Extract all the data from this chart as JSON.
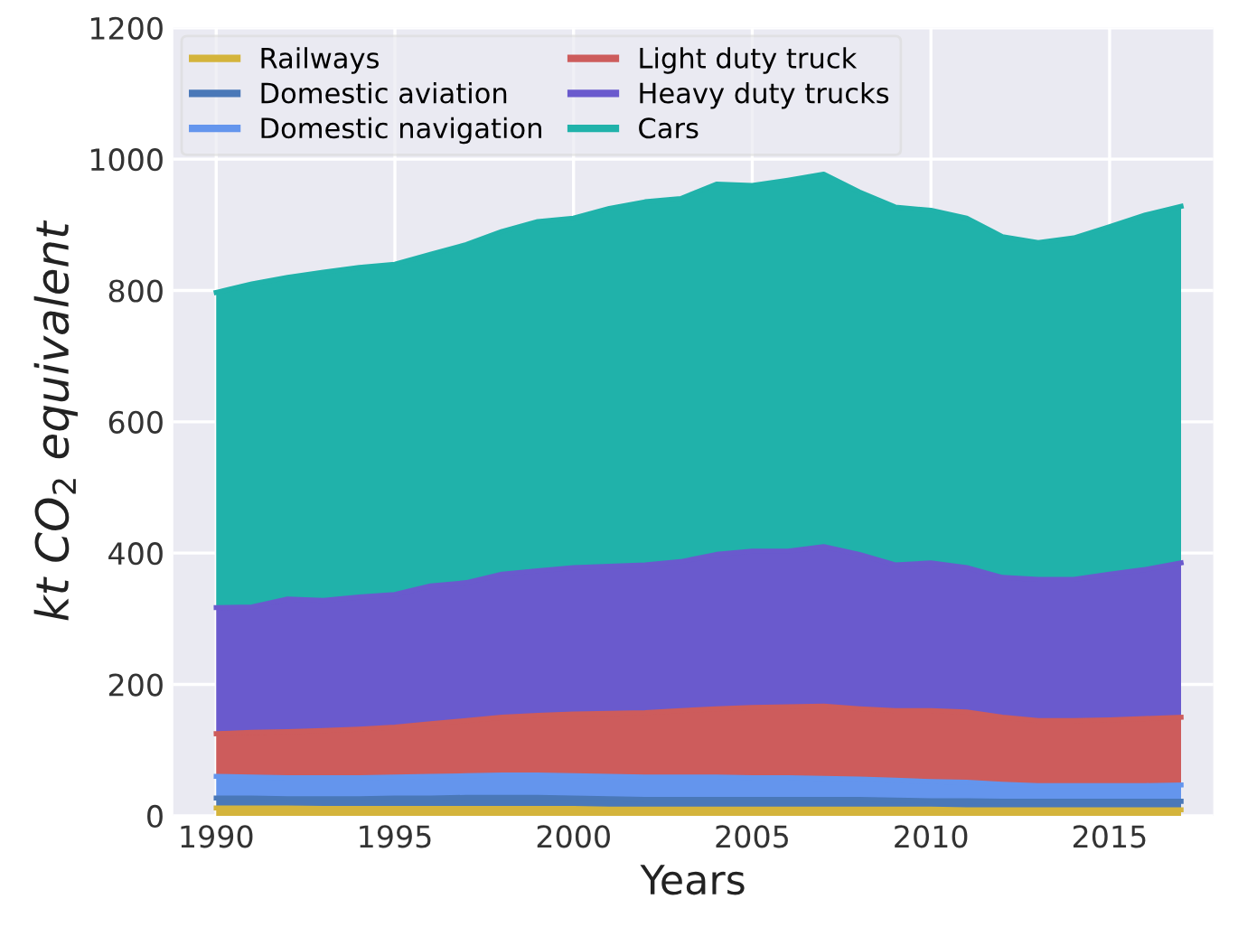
{
  "chart_data": {
    "type": "area",
    "stacked": true,
    "xlabel": "Years",
    "ylabel": "kt CO$_{2}$ equivalent",
    "x": [
      1990,
      1991,
      1992,
      1993,
      1994,
      1995,
      1996,
      1997,
      1998,
      1999,
      2000,
      2001,
      2002,
      2003,
      2004,
      2005,
      2006,
      2007,
      2008,
      2009,
      2010,
      2011,
      2012,
      2013,
      2014,
      2015,
      2016,
      2017
    ],
    "series": [
      {
        "name": "Railways",
        "color": "#d4b43c",
        "values": [
          12,
          12,
          12,
          11,
          11,
          11,
          11,
          11,
          11,
          11,
          11,
          10,
          10,
          10,
          10,
          10,
          10,
          10,
          10,
          10,
          10,
          9,
          9,
          9,
          9,
          9,
          9,
          9
        ]
      },
      {
        "name": "Domestic aviation",
        "color": "#4a78b8",
        "values": [
          15,
          15,
          14,
          15,
          15,
          16,
          16,
          17,
          17,
          17,
          16,
          16,
          15,
          15,
          15,
          15,
          15,
          15,
          15,
          14,
          13,
          14,
          13,
          13,
          13,
          13,
          13,
          13
        ]
      },
      {
        "name": "Domestic navigation",
        "color": "#6495ed",
        "values": [
          33,
          32,
          32,
          32,
          32,
          32,
          33,
          33,
          34,
          34,
          34,
          34,
          34,
          34,
          34,
          33,
          33,
          32,
          31,
          30,
          29,
          28,
          26,
          24,
          24,
          24,
          24,
          25
        ]
      },
      {
        "name": "Light duty truck",
        "color": "#cd5c5c",
        "values": [
          65,
          68,
          70,
          72,
          74,
          76,
          80,
          84,
          88,
          91,
          94,
          96,
          98,
          101,
          104,
          107,
          108,
          110,
          107,
          106,
          108,
          107,
          102,
          99,
          99,
          100,
          102,
          103
        ]
      },
      {
        "name": "Heavy duty trucks",
        "color": "#6a5acd",
        "values": [
          192,
          191,
          202,
          198,
          201,
          202,
          210,
          210,
          218,
          220,
          223,
          224,
          225,
          227,
          235,
          238,
          237,
          243,
          235,
          222,
          225,
          220,
          213,
          215,
          215,
          222,
          227,
          235
        ]
      },
      {
        "name": "Cars",
        "color": "#20b2aa",
        "values": [
          480,
          492,
          490,
          500,
          502,
          503,
          505,
          515,
          522,
          532,
          532,
          545,
          553,
          553,
          564,
          557,
          565,
          567,
          552,
          545,
          537,
          532,
          519,
          513,
          520,
          529,
          540,
          543
        ]
      }
    ],
    "xlim": [
      1988.8,
      2017.9
    ],
    "ylim": [
      0,
      1200
    ],
    "xticks": [
      1990,
      1995,
      2000,
      2005,
      2010,
      2015
    ],
    "yticks": [
      0,
      200,
      400,
      600,
      800,
      1000,
      1200
    ],
    "grid": true,
    "legend": "top left"
  }
}
